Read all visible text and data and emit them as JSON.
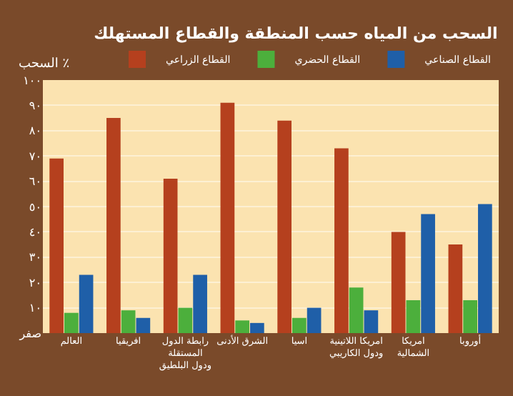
{
  "chart_data": {
    "type": "bar",
    "title": "السحب من المياه حسب المنطقة والقطاع المستهلك",
    "ylabel": "السحب ٪",
    "categories": [
      "العالم",
      "افريقيا",
      "رابطة الدول\nالمستقلة\nودول البلطيق",
      "الشرق الأدنى",
      "اسيا",
      "امريكا اللاتينية\nودول الكاريبي",
      "امريكا\nالشمالية",
      "أوروبا"
    ],
    "series": [
      {
        "name": "القطاع الزراعي",
        "color": "#b5401e",
        "values": [
          69,
          85,
          61,
          91,
          84,
          73,
          40,
          35
        ]
      },
      {
        "name": "القطاع الحضري",
        "color": "#4caf3c",
        "values": [
          8,
          9,
          10,
          5,
          6,
          18,
          13,
          13
        ]
      },
      {
        "name": "القطاع الصناعي",
        "color": "#1f5fa8",
        "values": [
          23,
          6,
          23,
          4,
          10,
          9,
          47,
          51
        ]
      }
    ],
    "ylim": [
      0,
      100
    ],
    "yticks": [
      {
        "value": 0,
        "label": "صفر"
      },
      {
        "value": 10,
        "label": "١٠"
      },
      {
        "value": 20,
        "label": "٢٠"
      },
      {
        "value": 30,
        "label": "٣٠"
      },
      {
        "value": 40,
        "label": "٤٠"
      },
      {
        "value": 50,
        "label": "٥٠"
      },
      {
        "value": 60,
        "label": "٦٠"
      },
      {
        "value": 70,
        "label": "٧٠"
      },
      {
        "value": 80,
        "label": "٨٠"
      },
      {
        "value": 90,
        "label": "٩٠"
      },
      {
        "value": 100,
        "label": "١٠٠"
      }
    ],
    "grid": "y",
    "legend": "top right"
  }
}
